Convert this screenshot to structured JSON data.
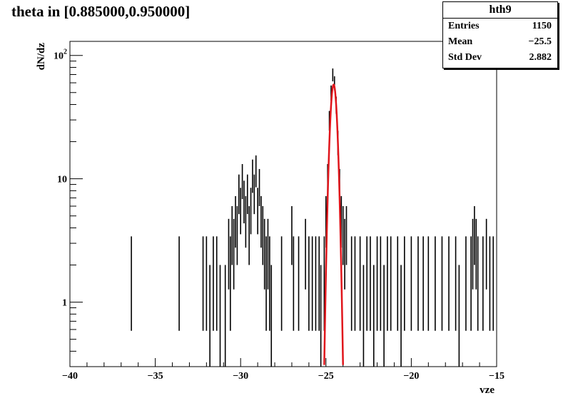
{
  "chart_data": {
    "type": "histogram",
    "title": "theta in [0.885000,0.950000]",
    "xlabel": "vze",
    "ylabel": "dN/dz",
    "xlim": [
      -40,
      -15
    ],
    "ylim": [
      0.3,
      130
    ],
    "yscale": "log",
    "grid": false,
    "x_ticks": [
      -40,
      -35,
      -30,
      -25,
      -20,
      -15
    ],
    "x_tick_labels": [
      "−40",
      "−35",
      "−30",
      "−25",
      "−20",
      "−15"
    ],
    "y_ticks": [
      1,
      10,
      100
    ],
    "y_tick_labels": [
      "1",
      "10",
      "10²"
    ],
    "stats": {
      "name": "hth9",
      "rows": [
        {
          "key": "Entries",
          "value": "1150"
        },
        {
          "key": "Mean",
          "value": "−25.5"
        },
        {
          "key": "Std Dev",
          "value": "2.882"
        }
      ]
    },
    "hist_color": "#000000",
    "fit_color": "#e0151b",
    "bins": [
      [
        -36.4,
        2
      ],
      [
        -33.6,
        2
      ],
      [
        -32.2,
        2
      ],
      [
        -32.0,
        2
      ],
      [
        -31.8,
        1
      ],
      [
        -31.6,
        2
      ],
      [
        -31.4,
        2
      ],
      [
        -31.2,
        1
      ],
      [
        -30.9,
        1
      ],
      [
        -30.7,
        3
      ],
      [
        -30.6,
        2
      ],
      [
        -30.5,
        4
      ],
      [
        -30.4,
        3
      ],
      [
        -30.3,
        5
      ],
      [
        -30.2,
        4
      ],
      [
        -30.1,
        8
      ],
      [
        -30.0,
        6
      ],
      [
        -29.9,
        10
      ],
      [
        -29.8,
        7
      ],
      [
        -29.7,
        5
      ],
      [
        -29.6,
        8
      ],
      [
        -29.5,
        4
      ],
      [
        -29.4,
        6
      ],
      [
        -29.3,
        11
      ],
      [
        -29.2,
        8
      ],
      [
        -29.1,
        12
      ],
      [
        -29.0,
        6
      ],
      [
        -28.9,
        9
      ],
      [
        -28.8,
        5
      ],
      [
        -28.7,
        4
      ],
      [
        -28.6,
        3
      ],
      [
        -28.5,
        2
      ],
      [
        -28.4,
        3
      ],
      [
        -28.3,
        2
      ],
      [
        -28.2,
        1
      ],
      [
        -27.6,
        2
      ],
      [
        -27.0,
        4
      ],
      [
        -26.9,
        2
      ],
      [
        -26.6,
        2
      ],
      [
        -26.2,
        3
      ],
      [
        -26.0,
        2
      ],
      [
        -25.8,
        2
      ],
      [
        -25.6,
        2
      ],
      [
        -25.4,
        2
      ],
      [
        -25.3,
        1
      ],
      [
        -25.1,
        2
      ],
      [
        -25.0,
        5
      ],
      [
        -24.9,
        10
      ],
      [
        -24.8,
        30
      ],
      [
        -24.7,
        50
      ],
      [
        -24.6,
        70
      ],
      [
        -24.5,
        60
      ],
      [
        -24.4,
        40
      ],
      [
        -24.3,
        20
      ],
      [
        -24.2,
        9
      ],
      [
        -24.1,
        5
      ],
      [
        -24.0,
        4
      ],
      [
        -23.9,
        3
      ],
      [
        -23.8,
        4
      ],
      [
        -23.5,
        2
      ],
      [
        -23.3,
        2
      ],
      [
        -23.0,
        2
      ],
      [
        -22.8,
        1
      ],
      [
        -22.6,
        2
      ],
      [
        -22.4,
        2
      ],
      [
        -22.2,
        1
      ],
      [
        -22.0,
        2
      ],
      [
        -21.8,
        2
      ],
      [
        -21.6,
        1
      ],
      [
        -21.4,
        2
      ],
      [
        -21.2,
        2
      ],
      [
        -20.8,
        2
      ],
      [
        -20.6,
        1
      ],
      [
        -20.4,
        2
      ],
      [
        -20.0,
        2
      ],
      [
        -19.6,
        2
      ],
      [
        -19.3,
        2
      ],
      [
        -19.0,
        2
      ],
      [
        -18.6,
        2
      ],
      [
        -18.2,
        2
      ],
      [
        -17.8,
        2
      ],
      [
        -17.4,
        2
      ],
      [
        -17.2,
        1
      ],
      [
        -16.8,
        2
      ],
      [
        -16.5,
        2
      ],
      [
        -16.4,
        3
      ],
      [
        -16.3,
        4
      ],
      [
        -16.2,
        3
      ],
      [
        -16.1,
        2
      ],
      [
        -15.8,
        2
      ],
      [
        -15.6,
        3
      ],
      [
        -15.4,
        2
      ],
      [
        -15.2,
        2
      ]
    ],
    "fit": {
      "function": "gaus",
      "constant": 58,
      "mean": -24.55,
      "sigma": 0.17,
      "range": [
        -25.1,
        -24.0
      ]
    }
  }
}
